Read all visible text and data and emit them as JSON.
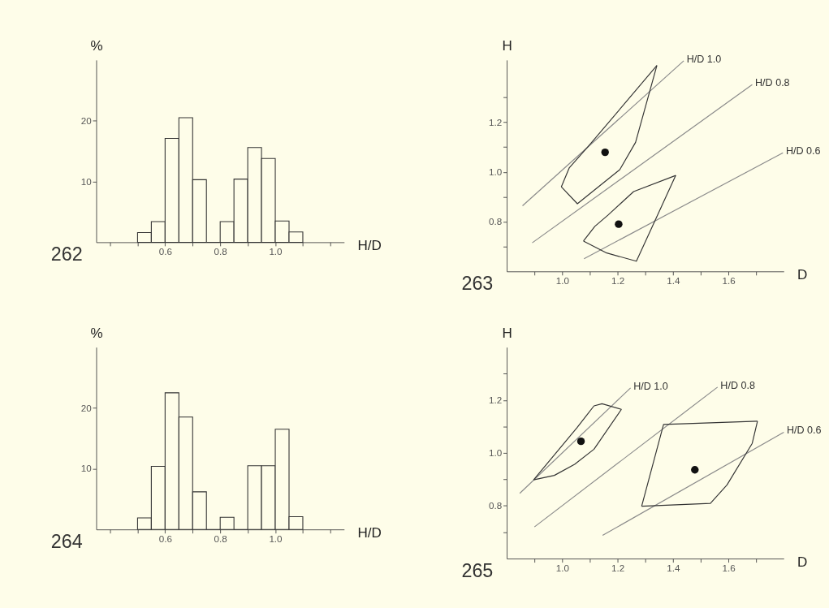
{
  "chart_data": [
    {
      "type": "histogram",
      "xlabel": "H/D",
      "ylabel": "%",
      "annotations": [
        "262"
      ],
      "bins": [
        0.5,
        0.55,
        0.6,
        0.65,
        0.7,
        0.75,
        0.8,
        0.85,
        0.9,
        0.95,
        1.0,
        1.05,
        1.1
      ],
      "values": [
        1.6,
        3.4,
        17.1,
        20.5,
        10.3,
        0,
        3.4,
        10.4,
        15.6,
        13.8,
        3.5,
        1.7
      ],
      "xlim": [
        0.35,
        1.25
      ],
      "ylim": [
        0,
        30
      ],
      "xticks": [
        {
          "value": 0.4,
          "label": null
        },
        {
          "value": 0.5,
          "label": null
        },
        0.6,
        {
          "value": 0.7,
          "label": null
        },
        0.8,
        {
          "value": 0.9,
          "label": null
        },
        {
          "value": 1.0,
          "label": "1.0"
        },
        {
          "value": 1.1,
          "label": null
        },
        {
          "value": 1.2,
          "label": null
        }
      ],
      "yticks": [
        10,
        20
      ],
      "grid": false
    },
    {
      "type": "scatter",
      "xlabel": "D",
      "ylabel": "H",
      "annotations": [
        "263"
      ],
      "xlim": [
        0.8,
        1.8
      ],
      "ylim": [
        0.6,
        1.45
      ],
      "xticks": [
        {
          "value": 0.9,
          "label": null
        },
        {
          "value": 1.0,
          "label": "1.0"
        },
        {
          "value": 1.1,
          "label": null
        },
        1.2,
        {
          "value": 1.3,
          "label": null
        },
        1.4,
        {
          "value": 1.5,
          "label": null
        },
        1.6,
        {
          "value": 1.7,
          "label": null
        }
      ],
      "yticks": [
        {
          "value": 0.7,
          "label": null
        },
        0.8,
        {
          "value": 0.9,
          "label": null
        },
        {
          "value": 1.0,
          "label": "1.0"
        },
        {
          "value": 1.1,
          "label": null
        },
        1.2,
        {
          "value": 1.3,
          "label": null
        }
      ],
      "grid": false,
      "series": [
        {
          "type": "line",
          "name": "H/D 1.0",
          "color": "#8a8a8a",
          "x": [
            0.857,
            1.439
          ],
          "values": [
            0.864,
            1.447
          ]
        },
        {
          "type": "line",
          "name": "H/D 0.8",
          "color": "#8a8a8a",
          "x": [
            0.892,
            1.686
          ],
          "values": [
            0.715,
            1.351
          ]
        },
        {
          "type": "line",
          "name": "H/D 0.6",
          "color": "#8a8a8a",
          "x": [
            1.079,
            1.797
          ],
          "values": [
            0.651,
            1.077
          ]
        },
        {
          "type": "line",
          "color": "#333333",
          "x": [
            0.997,
            1.026,
            1.096,
            1.342
          ],
          "values": [
            0.94,
            1.017,
            1.105,
            1.428
          ]
        },
        {
          "type": "line",
          "color": "#333333",
          "x": [
            0.997,
            1.055,
            1.208,
            1.265,
            1.342
          ],
          "values": [
            0.94,
            0.872,
            1.009,
            1.119,
            1.428
          ]
        },
        {
          "type": "line",
          "color": "#333333",
          "x": [
            1.077,
            1.118,
            1.165,
            1.258,
            1.41
          ],
          "values": [
            0.722,
            0.781,
            0.826,
            0.921,
            0.986
          ]
        },
        {
          "type": "line",
          "color": "#333333",
          "x": [
            1.077,
            1.161,
            1.268,
            1.41
          ],
          "values": [
            0.722,
            0.674,
            0.641,
            0.986
          ]
        },
        {
          "type": "scatter",
          "color": "#111111",
          "x": [
            1.155,
            1.204
          ],
          "values": [
            1.079,
            0.79
          ]
        }
      ]
    },
    {
      "type": "histogram",
      "xlabel": "H/D",
      "ylabel": "%",
      "annotations": [
        "264"
      ],
      "bins": [
        0.5,
        0.55,
        0.6,
        0.65,
        0.7,
        0.75,
        0.8,
        0.85,
        0.9,
        0.95,
        1.0,
        1.05,
        1.1
      ],
      "values": [
        1.9,
        10.4,
        22.5,
        18.5,
        6.2,
        0,
        2.0,
        0,
        10.5,
        10.5,
        16.5,
        2.1
      ],
      "xlim": [
        0.35,
        1.25
      ],
      "ylim": [
        0,
        30
      ],
      "xticks": [
        {
          "value": 0.4,
          "label": null
        },
        {
          "value": 0.5,
          "label": null
        },
        0.6,
        {
          "value": 0.7,
          "label": null
        },
        0.8,
        {
          "value": 0.9,
          "label": null
        },
        {
          "value": 1.0,
          "label": "1.0"
        },
        {
          "value": 1.1,
          "label": null
        },
        {
          "value": 1.2,
          "label": null
        }
      ],
      "yticks": [
        10,
        20
      ],
      "grid": false
    },
    {
      "type": "scatter",
      "xlabel": "D",
      "ylabel": "H",
      "annotations": [
        "265"
      ],
      "xlim": [
        0.8,
        1.8
      ],
      "ylim": [
        0.6,
        1.4
      ],
      "xticks": [
        {
          "value": 0.9,
          "label": null
        },
        {
          "value": 1.0,
          "label": "1.0"
        },
        {
          "value": 1.1,
          "label": null
        },
        1.2,
        {
          "value": 1.3,
          "label": null
        },
        1.4,
        {
          "value": 1.5,
          "label": null
        },
        1.6,
        {
          "value": 1.7,
          "label": null
        }
      ],
      "yticks": [
        {
          "value": 0.7,
          "label": null
        },
        0.8,
        {
          "value": 0.9,
          "label": null
        },
        {
          "value": 1.0,
          "label": "1.0"
        },
        {
          "value": 1.1,
          "label": null
        },
        1.2,
        {
          "value": 1.3,
          "label": null
        }
      ],
      "grid": false,
      "series": [
        {
          "type": "line",
          "name": "H/D 1.0",
          "color": "#8a8a8a",
          "x": [
            0.847,
            1.247
          ],
          "values": [
            0.847,
            1.246
          ]
        },
        {
          "type": "line",
          "name": "H/D 0.8",
          "color": "#8a8a8a",
          "x": [
            0.9,
            1.561
          ],
          "values": [
            0.72,
            1.249
          ]
        },
        {
          "type": "line",
          "name": "H/D 0.6",
          "color": "#8a8a8a",
          "x": [
            1.146,
            1.8
          ],
          "values": [
            0.688,
            1.078
          ]
        },
        {
          "type": "line",
          "color": "#333333",
          "x": [
            0.897,
            1.053,
            1.115,
            1.144,
            1.214
          ],
          "values": [
            0.898,
            1.095,
            1.178,
            1.186,
            1.165
          ]
        },
        {
          "type": "line",
          "color": "#333333",
          "x": [
            0.897,
            0.972,
            1.045,
            1.115,
            1.214
          ],
          "values": [
            0.898,
            0.915,
            0.957,
            1.014,
            1.165
          ]
        },
        {
          "type": "line",
          "color": "#333333",
          "x": [
            1.287,
            1.366,
            1.705
          ],
          "values": [
            0.798,
            1.108,
            1.12
          ]
        },
        {
          "type": "line",
          "color": "#333333",
          "x": [
            1.287,
            1.535,
            1.595,
            1.686,
            1.705
          ],
          "values": [
            0.798,
            0.809,
            0.879,
            1.036,
            1.12
          ]
        },
        {
          "type": "scatter",
          "color": "#111111",
          "x": [
            1.068,
            1.479
          ],
          "values": [
            1.044,
            0.936
          ]
        }
      ]
    }
  ]
}
